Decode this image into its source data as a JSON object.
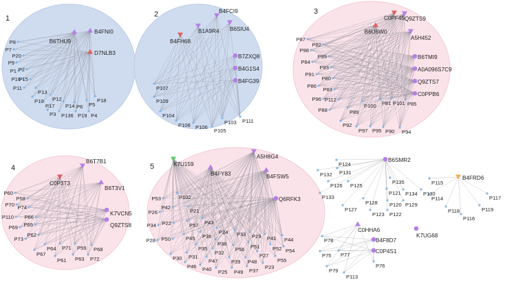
{
  "colors": {
    "blue_cluster": "#cfdcf0",
    "pink_cluster": "#fbe3ea",
    "edge": "#8c8c96",
    "peptide": "#7fb6e8",
    "protein": "#b57fe6",
    "protein_red": "#e0605a",
    "protein_green": "#5cc66a",
    "protein_orange": "#f0b050"
  },
  "clusters": [
    {
      "label": "1",
      "fill": "blue",
      "proteins": [
        {
          "id": "B6THU9",
          "shape": "triangle",
          "color": "protein"
        },
        {
          "id": "B4FNI0",
          "shape": "triangle",
          "color": "protein"
        },
        {
          "id": "D7NLB3",
          "shape": "triangle",
          "color": "protein_red"
        }
      ],
      "peptides": [
        "P8",
        "P7",
        "P20",
        "P9",
        "P1",
        "P2",
        "P16",
        "P15",
        "P11",
        "P13",
        "P12",
        "P10",
        "P17",
        "P14",
        "P6",
        "P5",
        "P18",
        "P3",
        "P136",
        "P19",
        "P4"
      ]
    },
    {
      "label": "2",
      "fill": "blue",
      "proteins": [
        {
          "id": "B4FCI9",
          "shape": "v",
          "color": "protein"
        },
        {
          "id": "B1A9R4",
          "shape": "v",
          "color": "protein"
        },
        {
          "id": "B4FH68",
          "shape": "v",
          "color": "protein_red"
        },
        {
          "id": "B6SIU4",
          "shape": "v",
          "color": "protein"
        },
        {
          "id": "B7ZXQ8",
          "shape": "circle",
          "color": "protein"
        },
        {
          "id": "B4G1S4",
          "shape": "circle",
          "color": "protein"
        },
        {
          "id": "B4FG39",
          "shape": "circle",
          "color": "protein"
        }
      ],
      "peptides": [
        "P107",
        "P109",
        "P104",
        "P108",
        "P106",
        "P105",
        "P103",
        "P111"
      ]
    },
    {
      "label": "3",
      "fill": "pink",
      "proteins": [
        {
          "id": "C0PF45",
          "shape": "v",
          "color": "protein_red"
        },
        {
          "id": "Q9ZTS9",
          "shape": "v",
          "color": "protein"
        },
        {
          "id": "B6U6W0",
          "shape": "triangle",
          "color": "protein_red"
        },
        {
          "id": "A5H452",
          "shape": "v",
          "color": "protein"
        },
        {
          "id": "B6TMI9",
          "shape": "circle",
          "color": "protein"
        },
        {
          "id": "A0A096S7C9",
          "shape": "circle",
          "color": "protein"
        },
        {
          "id": "Q9ZTS7",
          "shape": "circle",
          "color": "protein"
        },
        {
          "id": "C0PPB6",
          "shape": "circle",
          "color": "protein"
        }
      ],
      "peptides": [
        "P87",
        "P82",
        "P98",
        "P99",
        "P84",
        "P93",
        "P91",
        "P80",
        "P86",
        "P83",
        "P96",
        "P112",
        "P88",
        "P89",
        "P100",
        "P81",
        "P101",
        "P85",
        "P92",
        "P97",
        "P95",
        "P90",
        "P94"
      ]
    },
    {
      "label": "4",
      "fill": "pink",
      "proteins": [
        {
          "id": "B6T7B1",
          "shape": "v",
          "color": "protein"
        },
        {
          "id": "C0P3T3",
          "shape": "v",
          "color": "protein_red"
        },
        {
          "id": "B6T3V1",
          "shape": "triangle",
          "color": "protein"
        },
        {
          "id": "K7VCN5",
          "shape": "circle",
          "color": "protein"
        },
        {
          "id": "Q9ZTS8",
          "shape": "circle",
          "color": "protein"
        }
      ],
      "peptides": [
        "P60",
        "P58",
        "P70",
        "P74",
        "P110",
        "P66",
        "P69",
        "P65",
        "P62",
        "P73",
        "P64",
        "P71",
        "P59",
        "P68",
        "P67",
        "P61",
        "P63",
        "P72"
      ]
    },
    {
      "label": "5",
      "fill": "pink",
      "proteins": [
        {
          "id": "K7U159",
          "shape": "v",
          "color": "protein_green"
        },
        {
          "id": "A5H8G4",
          "shape": "v",
          "color": "protein"
        },
        {
          "id": "B4FY83",
          "shape": "triangle",
          "color": "protein"
        },
        {
          "id": "B4FSW5",
          "shape": "triangle",
          "color": "protein"
        },
        {
          "id": "Q6RFK3",
          "shape": "circle",
          "color": "protein"
        }
      ],
      "peptides": [
        "P102",
        "P53",
        "P42",
        "P21",
        "P26",
        "P57",
        "P43",
        "P22",
        "P34",
        "P24",
        "P33",
        "P29",
        "P41",
        "P44",
        "P45",
        "P36",
        "P28",
        "P50",
        "P38",
        "P35",
        "P32",
        "P56",
        "P51",
        "P52",
        "P54",
        "P30",
        "P31",
        "P47",
        "P39",
        "P48",
        "P27",
        "P55",
        "P46",
        "P40",
        "P25",
        "P49",
        "P37",
        "P23"
      ]
    },
    {
      "label": "",
      "fill": "none",
      "proteins": [
        {
          "id": "B6SMR2",
          "shape": "circle",
          "color": "protein"
        }
      ],
      "peptides": [
        "P124",
        "P132",
        "P131",
        "P135",
        "P126",
        "P125",
        "P121",
        "P134",
        "P130",
        "P133",
        "P128",
        "P120",
        "P129",
        "P127",
        "P123",
        "P122"
      ]
    },
    {
      "label": "",
      "fill": "none",
      "proteins": [
        {
          "id": "B4FRD6",
          "shape": "v",
          "color": "protein_orange"
        }
      ],
      "peptides": [
        "P115",
        "P117",
        "P114",
        "P119",
        "P118",
        "P116"
      ]
    },
    {
      "label": "",
      "fill": "none",
      "proteins": [
        {
          "id": "C0HHA6",
          "shape": "triangle",
          "color": "protein"
        },
        {
          "id": "B4F8D7",
          "shape": "circle",
          "color": "protein"
        },
        {
          "id": "C0P4S1",
          "shape": "circle",
          "color": "protein"
        }
      ],
      "peptides": [
        "P78",
        "P75",
        "P77",
        "P76",
        "P79",
        "P113"
      ]
    },
    {
      "label": "",
      "fill": "none",
      "proteins": [
        {
          "id": "K7UG68",
          "shape": "circle",
          "color": "protein"
        }
      ],
      "peptides": []
    }
  ]
}
